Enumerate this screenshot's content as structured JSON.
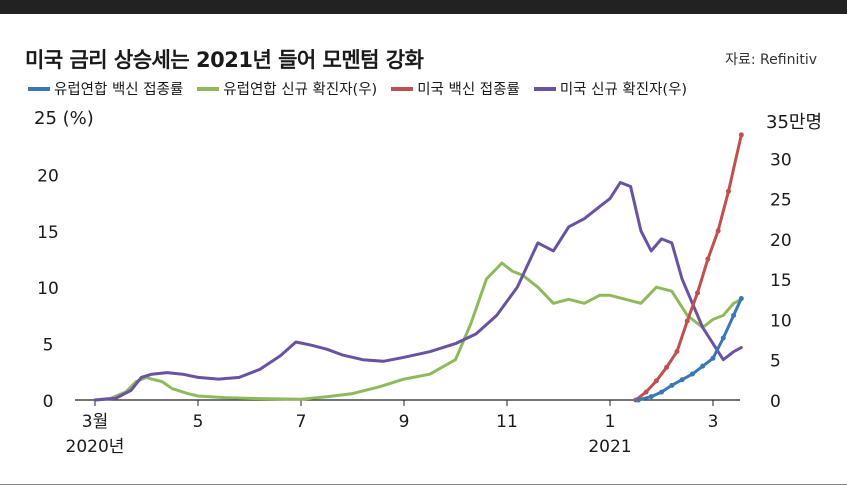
{
  "title": "미국 금리 상승세는 2021년 들어 모멘텀 강화",
  "source": "자료: Refinitiv",
  "colors": {
    "eu_vacc": "#3a78b5",
    "eu_cases": "#8fba5c",
    "us_vacc": "#c0504d",
    "us_cases": "#6a52a3"
  },
  "chart_data": {
    "type": "line",
    "left_axis": {
      "unit_label": "25 (%)",
      "ticks": [
        "0",
        "5",
        "10",
        "15",
        "20"
      ],
      "ylim": [
        0,
        25
      ]
    },
    "right_axis": {
      "unit_label": "35만명",
      "ticks": [
        "0",
        "5",
        "10",
        "15",
        "20",
        "25",
        "30"
      ],
      "ylim": [
        0,
        35
      ]
    },
    "x_ticks": [
      "3월",
      "5",
      "7",
      "9",
      "11",
      "1",
      "3"
    ],
    "x_year_labels": [
      "2020년",
      "2021"
    ],
    "x_tick_positions_month_index": [
      0,
      2,
      4,
      6,
      8,
      10,
      12
    ],
    "series": [
      {
        "name": "유럽연합 백신 접종률",
        "key": "eu_vacc",
        "axis": "left",
        "x": [
          10.55,
          10.8,
          11.0,
          11.2,
          11.4,
          11.6,
          11.8,
          12.0,
          12.2,
          12.4,
          12.55
        ],
        "y": [
          0.0,
          0.3,
          0.7,
          1.3,
          1.8,
          2.3,
          3.0,
          3.7,
          5.5,
          7.5,
          9.0
        ]
      },
      {
        "name": "유럽연합 신규 확진자(우)",
        "key": "eu_cases",
        "axis": "right",
        "x": [
          0.0,
          0.3,
          0.6,
          0.8,
          1.0,
          1.1,
          1.3,
          1.5,
          1.8,
          2.0,
          2.5,
          3.0,
          4.0,
          4.5,
          5.0,
          5.5,
          6.0,
          6.5,
          7.0,
          7.3,
          7.6,
          7.9,
          8.1,
          8.3,
          8.6,
          8.9,
          9.2,
          9.5,
          9.8,
          10.0,
          10.3,
          10.6,
          10.9,
          11.2,
          11.5,
          11.8,
          12.0,
          12.2,
          12.4,
          12.55
        ],
        "y": [
          0.0,
          0.2,
          1.0,
          2.3,
          2.8,
          2.6,
          2.3,
          1.4,
          0.8,
          0.5,
          0.3,
          0.2,
          0.1,
          0.4,
          0.8,
          1.6,
          2.6,
          3.2,
          5.0,
          9.5,
          15.0,
          17.0,
          16.0,
          15.5,
          14.0,
          12.0,
          12.5,
          12.0,
          13.0,
          13.0,
          12.5,
          12.0,
          14.0,
          13.5,
          10.5,
          9.0,
          10.0,
          10.5,
          12.0,
          12.5
        ]
      },
      {
        "name": "미국 백신 접종률",
        "key": "us_vacc",
        "axis": "left",
        "x": [
          10.5,
          10.7,
          10.9,
          11.1,
          11.3,
          11.5,
          11.7,
          11.9,
          12.1,
          12.3,
          12.55
        ],
        "y": [
          0.0,
          0.7,
          1.7,
          2.9,
          4.3,
          7.0,
          9.5,
          12.5,
          15.0,
          18.5,
          23.5
        ]
      },
      {
        "name": "미국 신규 확진자(우)",
        "key": "us_cases",
        "axis": "right",
        "x": [
          0.0,
          0.4,
          0.7,
          0.9,
          1.1,
          1.4,
          1.7,
          2.0,
          2.4,
          2.8,
          3.2,
          3.6,
          3.9,
          4.2,
          4.5,
          4.8,
          5.2,
          5.6,
          6.0,
          6.5,
          7.0,
          7.4,
          7.8,
          8.2,
          8.6,
          8.9,
          9.2,
          9.5,
          9.8,
          10.0,
          10.2,
          10.4,
          10.6,
          10.8,
          11.0,
          11.2,
          11.4,
          11.6,
          11.8,
          12.0,
          12.2,
          12.4,
          12.55
        ],
        "y": [
          0.0,
          0.2,
          1.2,
          2.8,
          3.2,
          3.4,
          3.2,
          2.8,
          2.6,
          2.8,
          3.8,
          5.5,
          7.2,
          6.8,
          6.3,
          5.6,
          5.0,
          4.8,
          5.3,
          6.0,
          7.0,
          8.2,
          10.5,
          14.0,
          19.5,
          18.5,
          21.5,
          22.5,
          24.0,
          25.0,
          27.0,
          26.5,
          21.0,
          18.5,
          20.0,
          19.5,
          15.0,
          12.0,
          9.0,
          7.0,
          5.0,
          6.0,
          6.5
        ]
      }
    ]
  }
}
